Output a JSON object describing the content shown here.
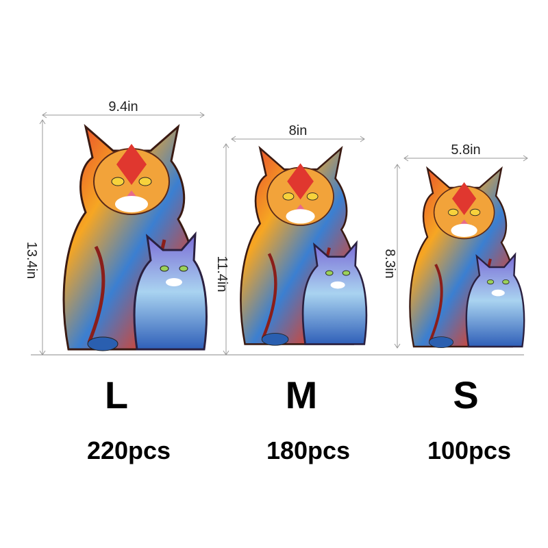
{
  "sizes": [
    {
      "width": "9.4in",
      "height": "13.4in",
      "size": "L",
      "pieces": "220pcs"
    },
    {
      "width": "8in",
      "height": "11.4in",
      "size": "M",
      "pieces": "180pcs"
    },
    {
      "width": "5.8in",
      "height": "8.3in",
      "size": "S",
      "pieces": "100pcs"
    }
  ]
}
